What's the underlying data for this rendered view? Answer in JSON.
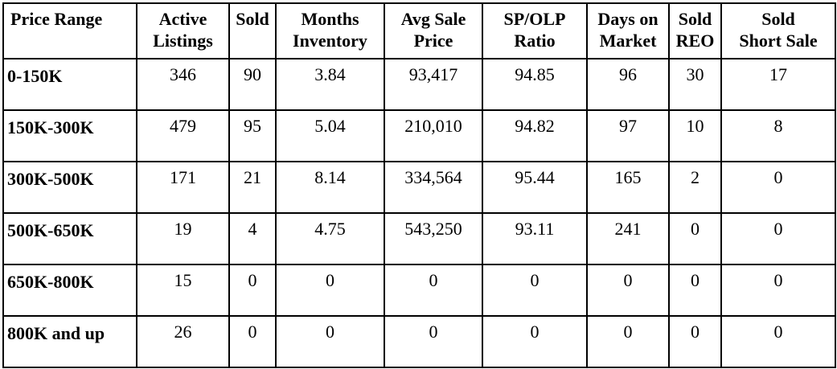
{
  "table": {
    "headers": [
      "Price Range",
      "Active Listings",
      "Sold",
      "Months Inventory",
      "Avg Sale Price",
      "SP/OLP Ratio",
      "Days on Market",
      "Sold REO",
      "Sold Short Sale"
    ],
    "header_lines": [
      [
        "Price Range"
      ],
      [
        "Active",
        "Listings"
      ],
      [
        "Sold"
      ],
      [
        "Months",
        "Inventory"
      ],
      [
        "Avg Sale",
        "Price"
      ],
      [
        "SP/OLP",
        "Ratio"
      ],
      [
        "Days on",
        "Market"
      ],
      [
        "Sold",
        "REO"
      ],
      [
        "Sold",
        "Short Sale"
      ]
    ],
    "rows": [
      [
        "0-150K",
        "346",
        "90",
        "3.84",
        "93,417",
        "94.85",
        "96",
        "30",
        "17"
      ],
      [
        "150K-300K",
        "479",
        "95",
        "5.04",
        "210,010",
        "94.82",
        "97",
        "10",
        "8"
      ],
      [
        "300K-500K",
        "171",
        "21",
        "8.14",
        "334,564",
        "95.44",
        "165",
        "2",
        "0"
      ],
      [
        "500K-650K",
        "19",
        "4",
        "4.75",
        "543,250",
        "93.11",
        "241",
        "0",
        "0"
      ],
      [
        "650K-800K",
        "15",
        "0",
        "0",
        "0",
        "0",
        "0",
        "0",
        "0"
      ],
      [
        "800K and up",
        "26",
        "0",
        "0",
        "0",
        "0",
        "0",
        "0",
        "0"
      ]
    ]
  }
}
